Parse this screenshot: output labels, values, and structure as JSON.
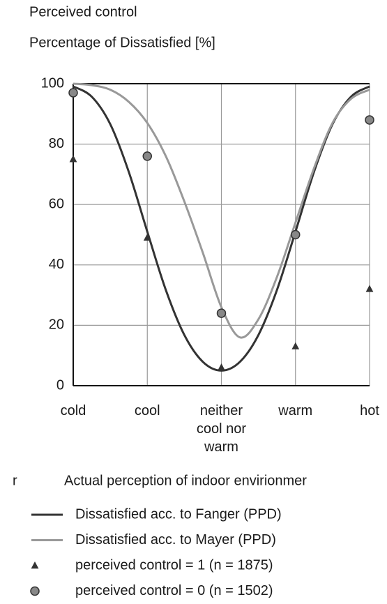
{
  "chart_data": {
    "type": "line",
    "title": "Perceived control",
    "y_label": "Percentage of Dissatisfied [%]",
    "x_label": "Actual perception of indoor envirionmer",
    "side_label": "r",
    "categories": [
      "cold",
      "cool",
      "neither cool nor warm",
      "warm",
      "hot"
    ],
    "ylim": [
      0,
      100
    ],
    "yticks": [
      0,
      20,
      40,
      60,
      80,
      100
    ],
    "grid": true,
    "series": [
      {
        "name": "Dissatisfied acc. to Fanger (PPD)",
        "color": "#333333",
        "kind": "line",
        "x": [
          0,
          0.25,
          0.5,
          0.75,
          1,
          1.25,
          1.5,
          1.75,
          2,
          2.25,
          2.5,
          2.75,
          3,
          3.25,
          3.5,
          3.75,
          4
        ],
        "values": [
          99.1,
          95.7,
          86.6,
          70.8,
          51,
          31.7,
          16.8,
          7.9,
          5,
          7.9,
          16.8,
          31.7,
          51,
          70.8,
          86.6,
          95.7,
          99.1
        ]
      },
      {
        "name": "Dissatisfied acc. to Mayer (PPD)",
        "color": "#999999",
        "kind": "line",
        "x": [
          0,
          0.25,
          0.5,
          0.75,
          1,
          1.25,
          1.5,
          1.75,
          2,
          2.25,
          2.5,
          2.75,
          3,
          3.25,
          3.5,
          3.75,
          4
        ],
        "values": [
          100,
          99.5,
          98,
          94,
          87,
          76,
          61,
          44,
          26,
          16,
          22,
          36,
          54,
          72,
          87,
          95,
          98
        ]
      },
      {
        "name": "perceived control = 1 (n = 1875)",
        "color": "#333333",
        "kind": "triangle",
        "values": [
          75,
          49,
          6,
          13,
          32
        ]
      },
      {
        "name": "perceived control = 0 (n = 1502)",
        "color": "#888888",
        "kind": "circle",
        "values": [
          97,
          76,
          24,
          50,
          88
        ]
      }
    ]
  }
}
